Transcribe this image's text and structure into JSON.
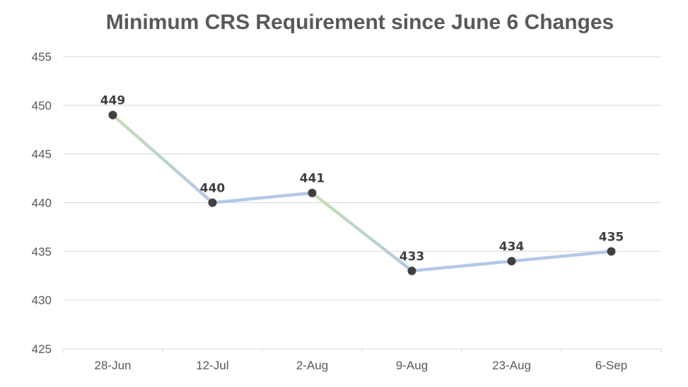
{
  "chart_data": {
    "type": "line",
    "title": "Minimum CRS Requirement since June 6 Changes",
    "xlabel": "",
    "ylabel": "",
    "categories": [
      "28-Jun",
      "12-Jul",
      "2-Aug",
      "9-Aug",
      "23-Aug",
      "6-Sep"
    ],
    "series": [
      {
        "values": [
          449,
          440,
          441,
          433,
          434,
          435
        ]
      }
    ],
    "ylim": [
      425,
      455
    ],
    "yticks": [
      425,
      430,
      435,
      440,
      445,
      450,
      455
    ],
    "ytick_labels": [
      "425",
      "430",
      "435",
      "440",
      "445",
      "450",
      "455"
    ],
    "data_labels": [
      "449",
      "440",
      "441",
      "433",
      "434",
      "435"
    ],
    "grid": true,
    "legend": "none",
    "colors": {
      "line_up": "#c5e0b4",
      "line_down": "#b4c7e7",
      "marker": "#404040",
      "title": "#595959",
      "grid": "#d9d9d9",
      "tick_text": "#595959",
      "data_label": "#404040"
    }
  }
}
